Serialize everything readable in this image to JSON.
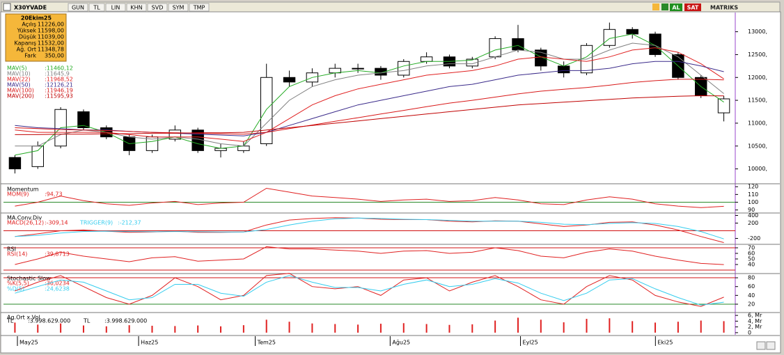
{
  "toolbar": {
    "symbol": "X30YVADE",
    "buttons": [
      "GUN",
      "TL",
      "LIN",
      "KHN",
      "SVD",
      "SYM",
      "TMP"
    ],
    "buy": "AL",
    "sell": "SAT",
    "brand": "MATRIKS"
  },
  "info": {
    "date": "20Ekim25",
    "rows": [
      [
        "Açılış",
        "11226,00"
      ],
      [
        "Yüksek",
        "11598,00"
      ],
      [
        "Düşük",
        "11039,00"
      ],
      [
        "Kapanış",
        "11532,00"
      ],
      [
        "Ağ. Ort",
        "11348,78"
      ],
      [
        "Fark",
        "350,00"
      ]
    ]
  },
  "chart_data": [
    {
      "type": "candlestick",
      "categories": [
        null,
        null,
        null,
        null,
        null,
        null,
        null,
        null,
        null,
        null,
        null,
        null,
        null,
        null,
        null,
        null,
        null,
        null,
        null,
        null,
        null,
        null,
        null,
        null,
        null,
        null,
        null,
        null,
        null,
        null,
        null,
        null
      ],
      "open": [
        10250,
        10050,
        10500,
        11250,
        10900,
        10700,
        10400,
        10650,
        10850,
        10400,
        10400,
        10550,
        12000,
        11900,
        12100,
        12200,
        12200,
        12050,
        12350,
        12450,
        12250,
        12450,
        12850,
        12600,
        12250,
        12100,
        12700,
        13050,
        12950,
        12500,
        12000,
        11226
      ],
      "high": [
        10300,
        10600,
        11350,
        11300,
        10950,
        10750,
        10750,
        10950,
        10900,
        10550,
        10600,
        12300,
        12150,
        12200,
        12300,
        12300,
        12250,
        12400,
        12550,
        12500,
        12450,
        12900,
        13150,
        12650,
        12350,
        12750,
        13200,
        13100,
        13000,
        12550,
        12050,
        11598
      ],
      "low": [
        9900,
        10000,
        10450,
        10850,
        10650,
        10300,
        10350,
        10600,
        10350,
        10250,
        10350,
        10500,
        11800,
        11800,
        12000,
        12100,
        11950,
        12000,
        12300,
        12200,
        12200,
        12400,
        12550,
        12150,
        12000,
        12050,
        12650,
        12850,
        12450,
        11950,
        11550,
        11039
      ],
      "close": [
        10000,
        10500,
        11300,
        10900,
        10700,
        10400,
        10700,
        10850,
        10400,
        10450,
        10500,
        12000,
        11900,
        12100,
        12200,
        12200,
        12050,
        12350,
        12450,
        12250,
        12400,
        12850,
        12600,
        12250,
        12100,
        12700,
        13050,
        12950,
        12500,
        12000,
        11600,
        11532
      ],
      "up_color": "#ffffff",
      "down_color": "#000000",
      "series": [
        {
          "name": "MAV(5)",
          "value_label": ":11460,12",
          "color": "#22aa22",
          "values": [
            10300,
            10400,
            10900,
            10950,
            10800,
            10550,
            10600,
            10700,
            10550,
            10450,
            10500,
            11300,
            11800,
            12000,
            12100,
            12150,
            12100,
            12250,
            12350,
            12350,
            12380,
            12600,
            12700,
            12450,
            12250,
            12450,
            12850,
            12950,
            12700,
            12250,
            11800,
            11460.12
          ]
        },
        {
          "name": "MAV(10)",
          "value_label": ":11645,9",
          "color": "#808080",
          "values": [
            10500,
            10500,
            10750,
            10850,
            10800,
            10700,
            10650,
            10700,
            10650,
            10550,
            10500,
            11000,
            11500,
            11800,
            11950,
            12050,
            12100,
            12150,
            12250,
            12300,
            12300,
            12450,
            12600,
            12550,
            12400,
            12400,
            12600,
            12750,
            12700,
            12450,
            12050,
            11645.9
          ]
        },
        {
          "name": "MAV(22)",
          "value_label": ":11968,52",
          "color": "#e02020",
          "values": [
            10850,
            10800,
            10800,
            10800,
            10800,
            10750,
            10700,
            10700,
            10700,
            10650,
            10600,
            10800,
            11100,
            11400,
            11600,
            11750,
            11850,
            11950,
            12050,
            12100,
            12150,
            12250,
            12400,
            12450,
            12400,
            12350,
            12450,
            12600,
            12650,
            12550,
            12300,
            11968.52
          ]
        },
        {
          "name": "MAV(50)",
          "value_label": ":12126,21",
          "color": "#3a2a8a",
          "values": [
            10950,
            10900,
            10880,
            10850,
            10850,
            10820,
            10800,
            10780,
            10760,
            10740,
            10720,
            10800,
            10950,
            11100,
            11250,
            11400,
            11500,
            11600,
            11700,
            11800,
            11850,
            11950,
            12050,
            12100,
            12150,
            12150,
            12200,
            12300,
            12350,
            12350,
            12250,
            12126.21
          ]
        },
        {
          "name": "MAV(100)",
          "value_label": ":11946,19",
          "color": "#d81818",
          "values": [
            10900,
            10880,
            10860,
            10850,
            10840,
            10820,
            10800,
            10790,
            10780,
            10770,
            10760,
            10800,
            10880,
            10960,
            11040,
            11120,
            11200,
            11280,
            11360,
            11440,
            11500,
            11570,
            11640,
            11700,
            11740,
            11780,
            11830,
            11890,
            11930,
            11960,
            11960,
            11946.19
          ]
        },
        {
          "name": "MAV(200)",
          "value_label": ":11595,93",
          "color": "#c00000",
          "values": [
            10750,
            10750,
            10760,
            10760,
            10770,
            10770,
            10780,
            10780,
            10790,
            10790,
            10800,
            10850,
            10900,
            10950,
            11000,
            11050,
            11100,
            11150,
            11200,
            11250,
            11300,
            11350,
            11400,
            11430,
            11460,
            11490,
            11520,
            11550,
            11570,
            11590,
            11600,
            11595.93
          ]
        }
      ],
      "ylim": [
        9690,
        13420
      ],
      "yticks": [
        {
          "value": 10000,
          "label": "10000,"
        },
        {
          "value": 10500,
          "label": "10500,"
        },
        {
          "value": 11000,
          "label": "11000,"
        },
        {
          "value": 11500,
          "label": "11500,"
        },
        {
          "value": 12000,
          "label": "12000,"
        },
        {
          "value": 12500,
          "label": "12500,"
        },
        {
          "value": 13000,
          "label": "13000,"
        }
      ]
    },
    {
      "type": "line",
      "title": "Momentum",
      "series": [
        {
          "name": "MOM(9)",
          "value_label": ":94,73",
          "color": "#e02020",
          "values": [
            95,
            100,
            108,
            102,
            98,
            96,
            99,
            101,
            97,
            99,
            100,
            118,
            113,
            108,
            106,
            104,
            101,
            103,
            104,
            101,
            102,
            106,
            103,
            98,
            97,
            103,
            107,
            104,
            98,
            95,
            93,
            94.73
          ]
        }
      ],
      "hlines": [
        {
          "value": 100,
          "color": "#2a8a2a"
        }
      ],
      "ylim": [
        87,
        122
      ],
      "yticks": [
        90,
        100,
        110,
        120
      ]
    },
    {
      "type": "line",
      "title": "MA.Conv.Div",
      "series": [
        {
          "name": "MACD(26,12)",
          "value_label": ":-309,14",
          "color": "#e02020",
          "values": [
            -150,
            -80,
            0,
            20,
            -10,
            -40,
            -30,
            -10,
            -40,
            -40,
            -30,
            150,
            280,
            320,
            340,
            330,
            300,
            290,
            290,
            250,
            230,
            260,
            250,
            180,
            110,
            150,
            220,
            230,
            150,
            20,
            -150,
            -309.14
          ]
        },
        {
          "name": "TRIGGER(9)",
          "value_label": ":-212,37",
          "color": "#33ccee",
          "values": [
            -150,
            -120,
            -60,
            -20,
            -10,
            -20,
            -25,
            -20,
            -25,
            -30,
            -30,
            30,
            150,
            250,
            310,
            330,
            320,
            300,
            290,
            270,
            250,
            250,
            250,
            220,
            170,
            160,
            190,
            210,
            190,
            110,
            -20,
            -212.37
          ]
        }
      ],
      "hlines": [
        {
          "value": 0,
          "color": "#d01010"
        }
      ],
      "ylim": [
        -336,
        445
      ],
      "yticks": [
        -200,
        200,
        400
      ]
    },
    {
      "type": "line",
      "title": "RSI",
      "series": [
        {
          "name": "RSI(14)",
          "value_label": ":39,8713",
          "color": "#e02020",
          "values": [
            40,
            50,
            62,
            55,
            50,
            45,
            52,
            54,
            46,
            48,
            50,
            72,
            68,
            68,
            66,
            64,
            60,
            64,
            65,
            60,
            62,
            70,
            65,
            55,
            52,
            62,
            68,
            64,
            55,
            48,
            42,
            39.8713
          ]
        }
      ],
      "hlines": [
        {
          "value": 70,
          "color": "#d01010"
        },
        {
          "value": 30,
          "color": "#d01010"
        }
      ],
      "ylim": [
        25,
        75
      ],
      "yticks": [
        40,
        50,
        60,
        70
      ]
    },
    {
      "type": "line",
      "title": "Stochastic Slow",
      "series": [
        {
          "name": "%K(5,5)",
          "value_label": ":36,0234",
          "color": "#e02020",
          "values": [
            50,
            70,
            85,
            60,
            35,
            20,
            40,
            80,
            60,
            30,
            40,
            85,
            90,
            60,
            55,
            60,
            40,
            75,
            80,
            50,
            70,
            85,
            60,
            30,
            20,
            60,
            85,
            75,
            40,
            25,
            15,
            36.0234
          ]
        },
        {
          "name": "%D(5)",
          "value_label": ":24,6238",
          "color": "#33ccee",
          "values": [
            45,
            60,
            75,
            70,
            50,
            30,
            35,
            65,
            65,
            45,
            38,
            70,
            85,
            70,
            58,
            58,
            50,
            65,
            75,
            60,
            65,
            78,
            68,
            45,
            28,
            45,
            75,
            78,
            55,
            35,
            18,
            24.6238
          ]
        }
      ],
      "hlines": [
        {
          "value": 80,
          "color": "#d01010"
        },
        {
          "value": 20,
          "color": "#2a8a2a"
        }
      ],
      "ylim": [
        2.6,
        88
      ],
      "yticks": [
        20,
        40,
        60,
        80
      ]
    },
    {
      "type": "bar",
      "title": "Ag.Ort x Vol",
      "series": [
        {
          "name": "TL",
          "value_label": ":3.998.629.000",
          "color": "#e02020",
          "values": [
            3500000000,
            2800000000,
            3200000000,
            2500000000,
            2200000000,
            2600000000,
            2400000000,
            2300000000,
            2500000000,
            2200000000,
            2600000000,
            4500000000,
            3800000000,
            3200000000,
            3000000000,
            2800000000,
            3100000000,
            3300000000,
            3000000000,
            2700000000,
            2900000000,
            4200000000,
            5200000000,
            4500000000,
            3600000000,
            4800000000,
            5000000000,
            4000000000,
            3500000000,
            3800000000,
            4200000000,
            3998629000
          ]
        },
        {
          "name": "TL",
          "value_label": ":3.998.629.000"
        }
      ],
      "ylim": [
        -750000000,
        6750000000
      ],
      "yticks": [
        {
          "value": 0,
          "label": "0"
        },
        {
          "value": 2000000000,
          "label": "2, Mr"
        },
        {
          "value": 4000000000,
          "label": "4, Mr"
        },
        {
          "value": 6000000000,
          "label": "6, Mr"
        }
      ],
      "xlim": [
        -0.5,
        31.5
      ],
      "xticks": [
        {
          "value": 0.2,
          "label": "May25"
        },
        {
          "value": 5.5,
          "label": "Haz25"
        },
        {
          "value": 10.6,
          "label": "Tem25"
        },
        {
          "value": 16.5,
          "label": "Ağu25"
        },
        {
          "value": 22.2,
          "label": "Eyl25"
        },
        {
          "value": 28.1,
          "label": "Eki25"
        }
      ]
    }
  ]
}
